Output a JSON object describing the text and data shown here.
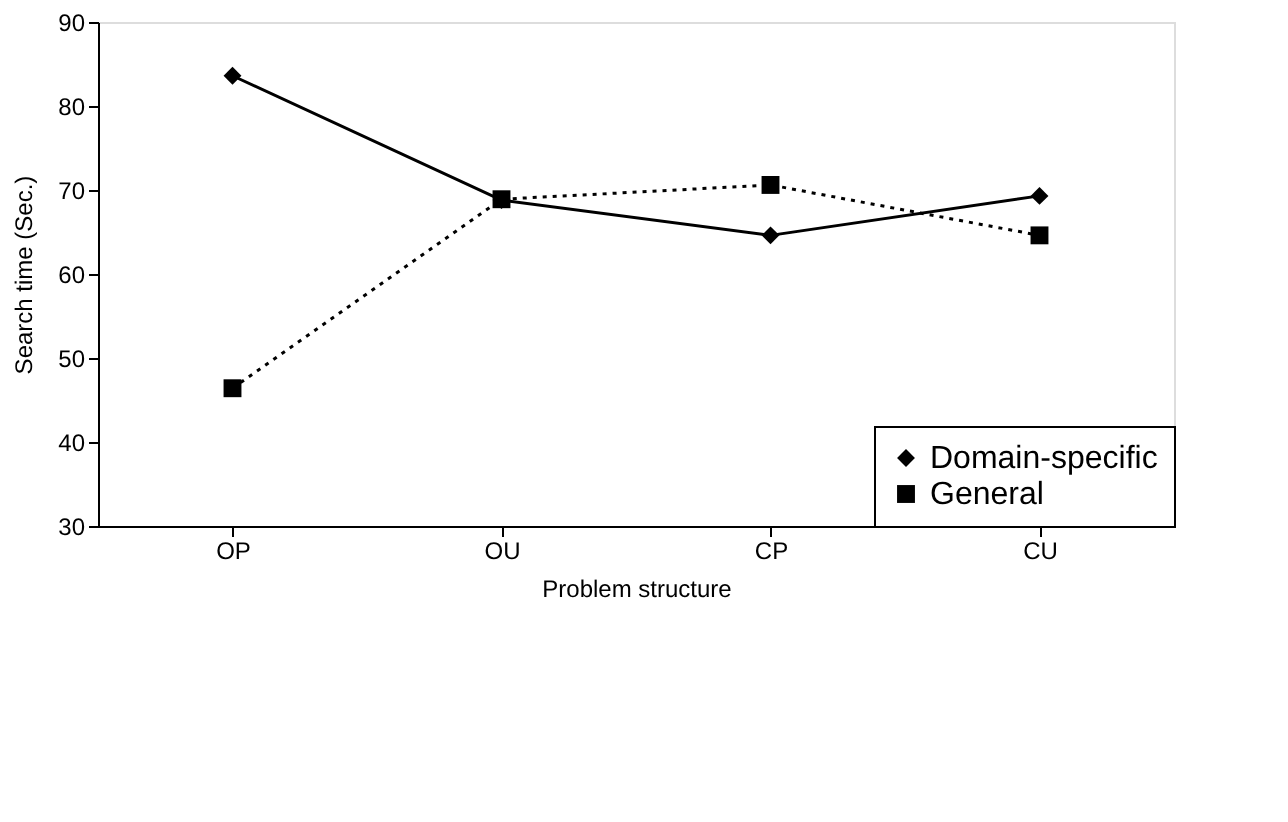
{
  "chart_data": {
    "type": "line",
    "xlabel": "Problem structure",
    "ylabel": "Search time (Sec.)",
    "categories": [
      "OP",
      "OU",
      "CP",
      "CU"
    ],
    "series": [
      {
        "name": "Domain-specific",
        "color": "#000000",
        "marker": "diamond",
        "line_style": "solid",
        "values": [
          83.6,
          68.8,
          64.6,
          69.3
        ]
      },
      {
        "name": "General",
        "color": "#000000",
        "marker": "square",
        "line_style": "dotted",
        "values": [
          46.4,
          68.9,
          70.6,
          64.6
        ]
      }
    ],
    "ylim": [
      30,
      90
    ],
    "yticks": [
      30,
      40,
      50,
      60,
      70,
      80,
      90
    ],
    "grid": false,
    "legend": "bottom right"
  }
}
